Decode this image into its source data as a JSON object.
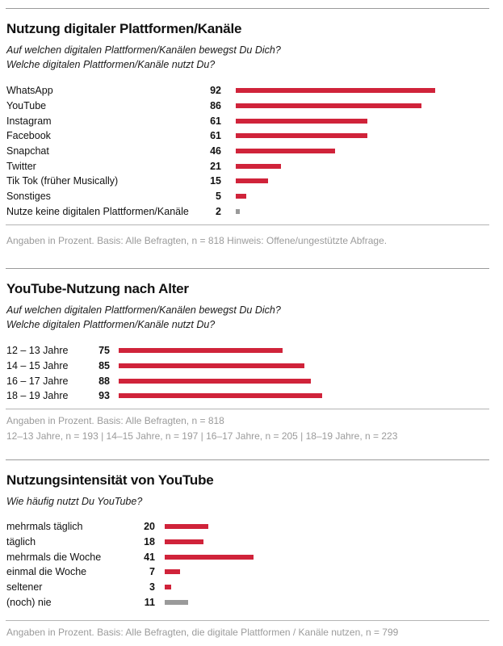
{
  "colors": {
    "bar": "#d0233a",
    "bar_muted": "#9a9a9a",
    "note": "#9b9b9b"
  },
  "chart_data": [
    {
      "type": "bar",
      "orientation": "horizontal",
      "title": "Nutzung digitaler Plattformen/Kanäle",
      "question": [
        "Auf welchen digitalen Plattformen/Kanälen bewegst Du Dich?",
        "Welche digitalen Plattformen/Kanäle nutzt Du?"
      ],
      "categories": [
        "WhatsApp",
        "YouTube",
        "Instagram",
        "Facebook",
        "Snapchat",
        "Twitter",
        "Tik Tok (früher Musically)",
        "Sonstiges",
        "Nutze keine digitalen Plattformen/Kanäle"
      ],
      "values": [
        92,
        86,
        61,
        61,
        46,
        21,
        15,
        5,
        2
      ],
      "muted": [
        false,
        false,
        false,
        false,
        false,
        false,
        false,
        false,
        true
      ],
      "notes": [
        "Angaben in Prozent. Basis: Alle Befragten, n = 818 Hinweis: Offene/ungestützte Abfrage."
      ]
    },
    {
      "type": "bar",
      "orientation": "horizontal",
      "title": "YouTube-Nutzung nach Alter",
      "question": [
        "Auf welchen digitalen Plattformen/Kanälen bewegst Du Dich?",
        "Welche digitalen Plattformen/Kanäle nutzt Du?"
      ],
      "categories": [
        "12 – 13 Jahre",
        "14 – 15 Jahre",
        "16 – 17 Jahre",
        "18 – 19 Jahre"
      ],
      "values": [
        75,
        85,
        88,
        93
      ],
      "muted": [
        false,
        false,
        false,
        false
      ],
      "notes": [
        "Angaben in Prozent. Basis: Alle Befragten, n = 818",
        "12–13 Jahre, n = 193 | 14–15 Jahre, n = 197 | 16–17 Jahre, n = 205 | 18–19 Jahre, n = 223"
      ]
    },
    {
      "type": "bar",
      "orientation": "horizontal",
      "title": "Nutzungsintensität von YouTube",
      "question": [
        "Wie häufig nutzt Du YouTube?"
      ],
      "categories": [
        "mehrmals täglich",
        "täglich",
        "mehrmals die Woche",
        "einmal die Woche",
        "seltener",
        "(noch) nie"
      ],
      "values": [
        20,
        18,
        41,
        7,
        3,
        11
      ],
      "muted": [
        false,
        false,
        false,
        false,
        false,
        true
      ],
      "notes": [
        "Angaben in Prozent. Basis: Alle Befragten, die digitale Plattformen / Kanäle nutzen, n = 799"
      ]
    }
  ]
}
